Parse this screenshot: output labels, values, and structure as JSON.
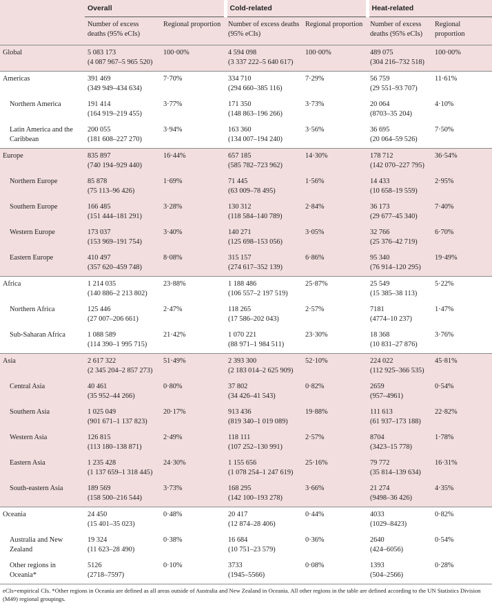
{
  "header": {
    "groups": [
      "Overall",
      "Cold-related",
      "Heat-related"
    ],
    "col_deaths": "Number of excess deaths (95% eCIs)",
    "col_prop": "Regional proportion"
  },
  "rows": [
    {
      "region": "Global",
      "sub": false,
      "shade": "pink",
      "o": [
        "5 083 173",
        "(4 087 967–5 965 520)",
        "100·00%"
      ],
      "c": [
        "4 594 098",
        "(3 337 222–5 640 617)",
        "100·00%"
      ],
      "h": [
        "489 075",
        "(304 216–732 518)",
        "100·00%"
      ]
    },
    {
      "region": "Americas",
      "sub": false,
      "shade": "white",
      "o": [
        "391 469",
        "(349 949–434 634)",
        "7·70%"
      ],
      "c": [
        "334 710",
        "(294 660–385 116)",
        "7·29%"
      ],
      "h": [
        "56 759",
        "(29 551–93 707)",
        "11·61%"
      ]
    },
    {
      "region": "Northern America",
      "sub": true,
      "shade": "white",
      "o": [
        "191 414",
        "(164 919–219 455)",
        "3·77%"
      ],
      "c": [
        "171 350",
        "(148 863–196 266)",
        "3·73%"
      ],
      "h": [
        "20 064",
        "(8703–35 204)",
        "4·10%"
      ]
    },
    {
      "region": "Latin America and the Caribbean",
      "sub": true,
      "shade": "white",
      "o": [
        "200 055",
        "(181 608–227 270)",
        "3·94%"
      ],
      "c": [
        "163 360",
        "(134 007–194 240)",
        "3·56%"
      ],
      "h": [
        "36 695",
        "(20 064–59 526)",
        "7·50%"
      ]
    },
    {
      "region": "Europe",
      "sub": false,
      "shade": "pink",
      "o": [
        "835 897",
        "(740 194–929 440)",
        "16·44%"
      ],
      "c": [
        "657 185",
        "(585 782–723 962)",
        "14·30%"
      ],
      "h": [
        "178 712",
        "(142 070–227 795)",
        "36·54%"
      ]
    },
    {
      "region": "Northern Europe",
      "sub": true,
      "shade": "pink",
      "o": [
        "85 878",
        "(75 113–96 426)",
        "1·69%"
      ],
      "c": [
        "71 445",
        "(63 009–78 495)",
        "1·56%"
      ],
      "h": [
        "14 433",
        "(10 658–19 559)",
        "2·95%"
      ]
    },
    {
      "region": "Southern Europe",
      "sub": true,
      "shade": "pink",
      "o": [
        "166 485",
        "(151 444–181 291)",
        "3·28%"
      ],
      "c": [
        "130 312",
        "(118 584–140 789)",
        "2·84%"
      ],
      "h": [
        "36 173",
        "(29 677–45 340)",
        "7·40%"
      ]
    },
    {
      "region": "Western Europe",
      "sub": true,
      "shade": "pink",
      "o": [
        "173 037",
        "(153 969–191 754)",
        "3·40%"
      ],
      "c": [
        "140 271",
        "(125 698–153 056)",
        "3·05%"
      ],
      "h": [
        "32 766",
        "(25 376–42 719)",
        "6·70%"
      ]
    },
    {
      "region": "Eastern Europe",
      "sub": true,
      "shade": "pink",
      "o": [
        "410 497",
        "(357 620–459 748)",
        "8·08%"
      ],
      "c": [
        "315 157",
        "(274 617–352 139)",
        "6·86%"
      ],
      "h": [
        "95 340",
        "(76 914–120 295)",
        "19·49%"
      ]
    },
    {
      "region": "Africa",
      "sub": false,
      "shade": "white",
      "o": [
        "1 214 035",
        "(140 886–2 213 802)",
        "23·88%"
      ],
      "c": [
        "1 188 486",
        "(106 557–2 197 519)",
        "25·87%"
      ],
      "h": [
        "25 549",
        "(15 385–38 113)",
        "5·22%"
      ]
    },
    {
      "region": "Northern Africa",
      "sub": true,
      "shade": "white",
      "o": [
        "125 446",
        "(27 007–206 661)",
        "2·47%"
      ],
      "c": [
        "118 265",
        "(17 586–202 043)",
        "2·57%"
      ],
      "h": [
        "7181",
        "(4774–10 237)",
        "1·47%"
      ]
    },
    {
      "region": "Sub-Saharan Africa",
      "sub": true,
      "shade": "white",
      "o": [
        "1 088 589",
        "(114 390–1 995 715)",
        "21·42%"
      ],
      "c": [
        "1 070 221",
        "(88 971–1 984 511)",
        "23·30%"
      ],
      "h": [
        "18 368",
        "(10 831–27 876)",
        "3·76%"
      ]
    },
    {
      "region": "Asia",
      "sub": false,
      "shade": "pink",
      "o": [
        "2 617 322",
        "(2 345 204–2 857 273)",
        "51·49%"
      ],
      "c": [
        "2 393 300",
        "(2 183 014–2 625 909)",
        "52·10%"
      ],
      "h": [
        "224 022",
        "(112 925–366 535)",
        "45·81%"
      ]
    },
    {
      "region": "Central Asia",
      "sub": true,
      "shade": "pink",
      "o": [
        "40 461",
        "(35 952–44 266)",
        "0·80%"
      ],
      "c": [
        "37 802",
        "(34 426–41 543)",
        "0·82%"
      ],
      "h": [
        "2659",
        "(957–4961)",
        "0·54%"
      ]
    },
    {
      "region": "Southern Asia",
      "sub": true,
      "shade": "pink",
      "o": [
        "1 025 049",
        "(901 671–1 137 823)",
        "20·17%"
      ],
      "c": [
        "913 436",
        "(819 340–1 019 089)",
        "19·88%"
      ],
      "h": [
        "111 613",
        "(61 937–173 188)",
        "22·82%"
      ]
    },
    {
      "region": "Western Asia",
      "sub": true,
      "shade": "pink",
      "o": [
        "126 815",
        "(113 180–138 871)",
        "2·49%"
      ],
      "c": [
        "118 111",
        "(107 252–130 991)",
        "2·57%"
      ],
      "h": [
        "8704",
        "(3423–15 778)",
        "1·78%"
      ]
    },
    {
      "region": "Eastern Asia",
      "sub": true,
      "shade": "pink",
      "o": [
        "1 235 428",
        "(1 137 659–1 318 445)",
        "24·30%"
      ],
      "c": [
        "1 155 656",
        "(1 078 254–1 247 619)",
        "25·16%"
      ],
      "h": [
        "79 772",
        "(35 814–139 634)",
        "16·31%"
      ]
    },
    {
      "region": "South-eastern Asia",
      "sub": true,
      "shade": "pink",
      "o": [
        "189 569",
        "(158 500–216 544)",
        "3·73%"
      ],
      "c": [
        "168 295",
        "(142 100–193 278)",
        "3·66%"
      ],
      "h": [
        "21 274",
        "(9498–36 426)",
        "4·35%"
      ]
    },
    {
      "region": "Oceania",
      "sub": false,
      "shade": "white",
      "o": [
        "24 450",
        "(15 401–35 023)",
        "0·48%"
      ],
      "c": [
        "20 417",
        "(12 874–28 406)",
        "0·44%"
      ],
      "h": [
        "4033",
        "(1029–8423)",
        "0·82%"
      ]
    },
    {
      "region": "Australia and New Zealand",
      "sub": true,
      "shade": "white",
      "o": [
        "19 324",
        "(11 623–28 490)",
        "0·38%"
      ],
      "c": [
        "16 684",
        "(10 751–23 579)",
        "0·36%"
      ],
      "h": [
        "2640",
        "(424–6056)",
        "0·54%"
      ]
    },
    {
      "region": "Other regions in Oceania*",
      "sub": true,
      "shade": "white",
      "o": [
        "5126",
        "(2718–7597)",
        "0·10%"
      ],
      "c": [
        "3733",
        "(1945–5566)",
        "0·08%"
      ],
      "h": [
        "1393",
        "(504–2566)",
        "0·28%"
      ]
    }
  ],
  "footnote": "eCIs=empirical CIs. *Other regions in Oceania are defined as all areas outside of Australia and New Zealand in Oceania. All other regions in the table are defined according to the UN Statistics Division (M49) regional groupings."
}
